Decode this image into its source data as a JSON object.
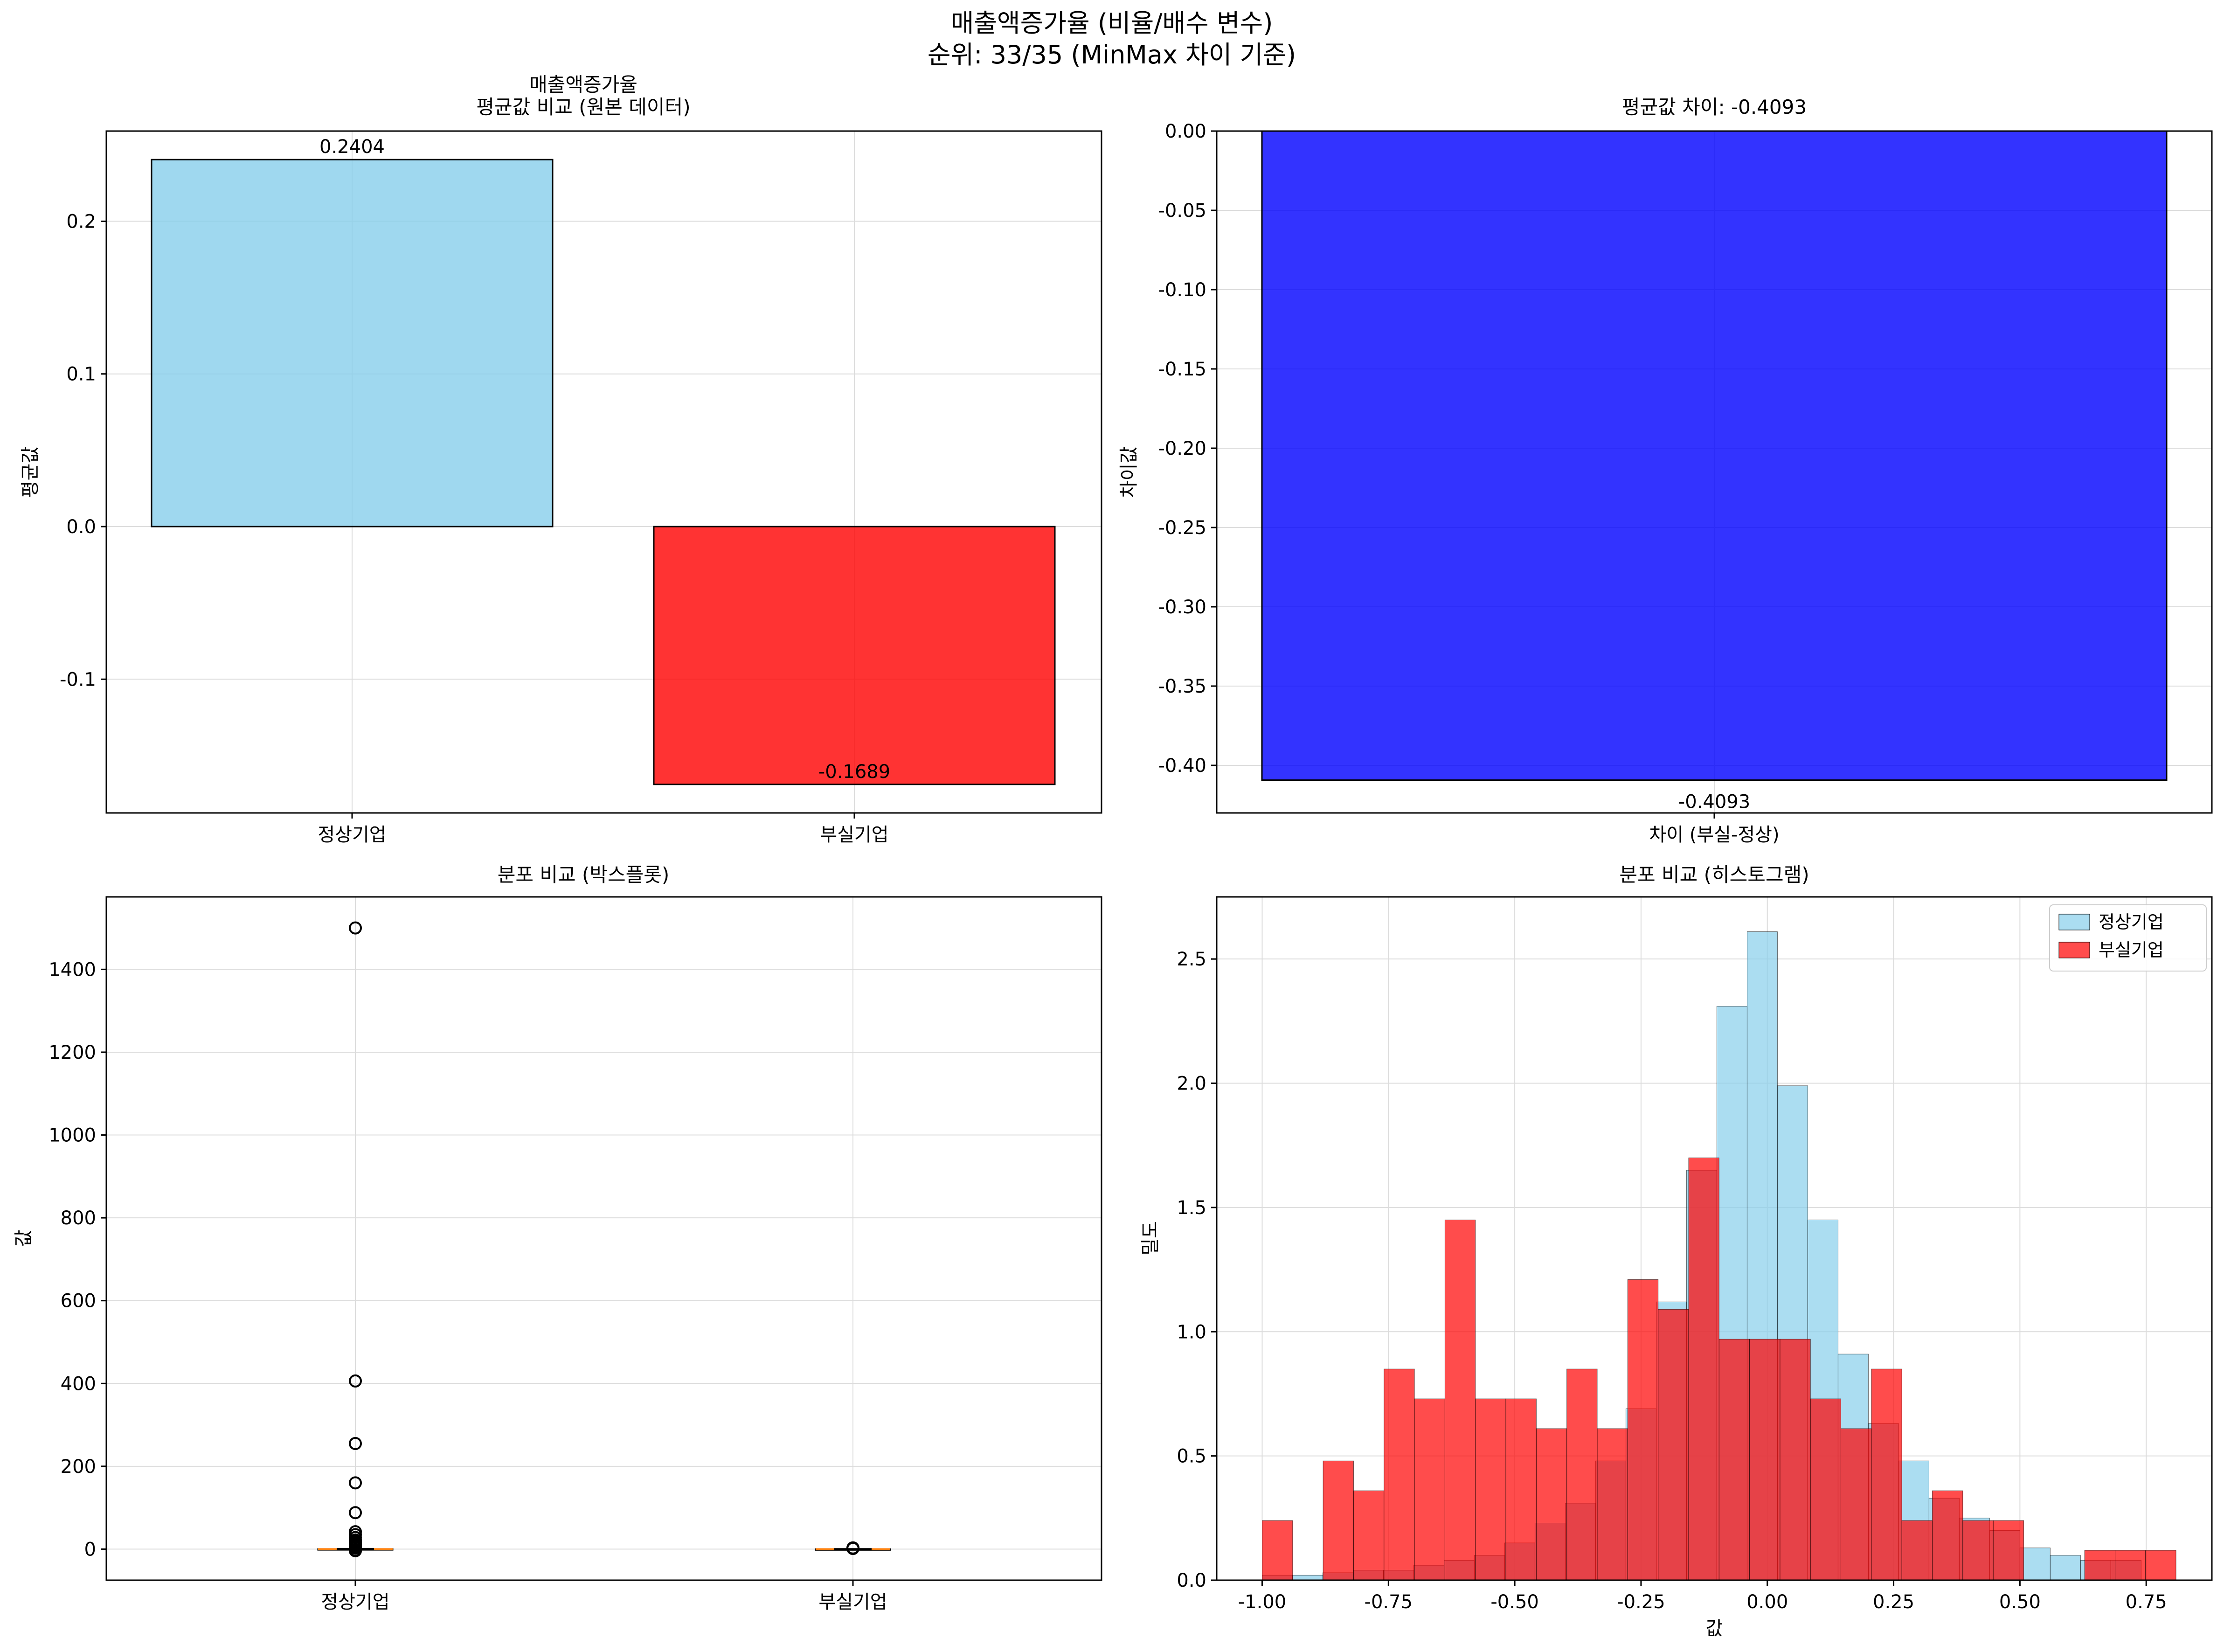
{
  "figure": {
    "title_line1": "매출액증가율 (비율/배수 변수)",
    "title_line2": "순위: 33/35 (MinMax 차이 기준)"
  },
  "colors": {
    "normal": "#87ceeb",
    "distressed": "#ff0000",
    "diff": "#0000ff",
    "median": "#ff7f0e"
  },
  "chart_data": [
    {
      "id": "mean-bar",
      "type": "bar",
      "title_line1": "매출액증가율",
      "title_line2": "평균값 비교 (원본 데이터)",
      "categories": [
        "정상기업",
        "부실기업"
      ],
      "values": [
        0.2404,
        -0.1689
      ],
      "value_labels": [
        "0.2404",
        "-0.1689"
      ],
      "xlabel": "",
      "ylabel": "평균값",
      "ylim": [
        -0.1876,
        0.2591
      ],
      "yticks": [
        -0.1,
        0.0,
        0.1,
        0.2
      ],
      "ytick_labels": [
        "-0.1",
        "0.0",
        "0.1",
        "0.2"
      ],
      "grid": true
    },
    {
      "id": "diff-bar",
      "type": "bar",
      "title": "평균값 차이: -0.4093",
      "categories": [
        "차이 (부실-정상)"
      ],
      "values": [
        -0.4093
      ],
      "value_labels": [
        "-0.4093"
      ],
      "xlabel": "",
      "ylabel": "차이값",
      "ylim": [
        -0.43,
        0.0
      ],
      "yticks": [
        0.0,
        -0.05,
        -0.1,
        -0.15,
        -0.2,
        -0.25,
        -0.3,
        -0.35,
        -0.4
      ],
      "ytick_labels": [
        "0.00",
        "-0.05",
        "-0.10",
        "-0.15",
        "-0.20",
        "-0.25",
        "-0.30",
        "-0.35",
        "-0.40"
      ],
      "grid": true
    },
    {
      "id": "boxplot",
      "type": "box",
      "title": "분포 비교 (박스플롯)",
      "categories": [
        "정상기업",
        "부실기업"
      ],
      "xlabel": "",
      "ylabel": "값",
      "ylim": [
        -75,
        1575
      ],
      "yticks": [
        0,
        200,
        400,
        600,
        800,
        1000,
        1200,
        1400
      ],
      "ytick_labels": [
        "0",
        "200",
        "400",
        "600",
        "800",
        "1000",
        "1200",
        "1400"
      ],
      "series": [
        {
          "name": "정상기업",
          "median": 0.1,
          "q1": -0.15,
          "q3": 0.35,
          "whisker_low": -0.9,
          "whisker_high": 1.1,
          "outliers": [
            1500,
            406,
            255,
            160,
            88,
            42,
            35,
            28,
            22,
            18,
            14,
            10,
            7,
            5,
            3,
            -2,
            -4
          ]
        },
        {
          "name": "부실기업",
          "median": -0.15,
          "q1": -0.45,
          "q3": 0.1,
          "whisker_low": -1.0,
          "whisker_high": 0.8,
          "outliers": [
            3,
            2,
            1.5
          ]
        }
      ],
      "grid": true
    },
    {
      "id": "histogram",
      "type": "histogram",
      "title": "분포 비교 (히스토그램)",
      "xlabel": "값",
      "ylabel": "밀도",
      "xlim": [
        -1.09,
        0.88
      ],
      "ylim": [
        0,
        2.75
      ],
      "xticks": [
        -1.0,
        -0.75,
        -0.5,
        -0.25,
        0.0,
        0.25,
        0.5,
        0.75
      ],
      "xtick_labels": [
        "-1.00",
        "-0.75",
        "-0.50",
        "-0.25",
        "0.00",
        "0.25",
        "0.50",
        "0.75"
      ],
      "yticks": [
        0.0,
        0.5,
        1.0,
        1.5,
        2.0,
        2.5
      ],
      "ytick_labels": [
        "0.0",
        "0.5",
        "1.0",
        "1.5",
        "2.0",
        "2.5"
      ],
      "legend_position": "top-right",
      "grid": true,
      "series": [
        {
          "name": "정상기업",
          "bin_start": -1.0,
          "bin_width": 0.06,
          "values": [
            0.02,
            0.02,
            0.03,
            0.04,
            0.04,
            0.06,
            0.08,
            0.1,
            0.15,
            0.23,
            0.31,
            0.48,
            0.69,
            1.12,
            1.65,
            2.31,
            2.61,
            1.99,
            1.45,
            0.91,
            0.63,
            0.48,
            0.33,
            0.25,
            0.2,
            0.13,
            0.1,
            0.08,
            0.08
          ]
        },
        {
          "name": "부실기업",
          "bin_start": -1.0,
          "bin_width": 0.0603,
          "values": [
            0.24,
            0.0,
            0.48,
            0.36,
            0.85,
            0.73,
            1.45,
            0.73,
            0.73,
            0.61,
            0.85,
            0.61,
            1.21,
            1.09,
            1.7,
            0.97,
            0.97,
            0.97,
            0.73,
            0.61,
            0.85,
            0.24,
            0.36,
            0.24,
            0.24,
            0.0,
            0.0,
            0.12,
            0.12,
            0.12
          ]
        }
      ]
    }
  ]
}
